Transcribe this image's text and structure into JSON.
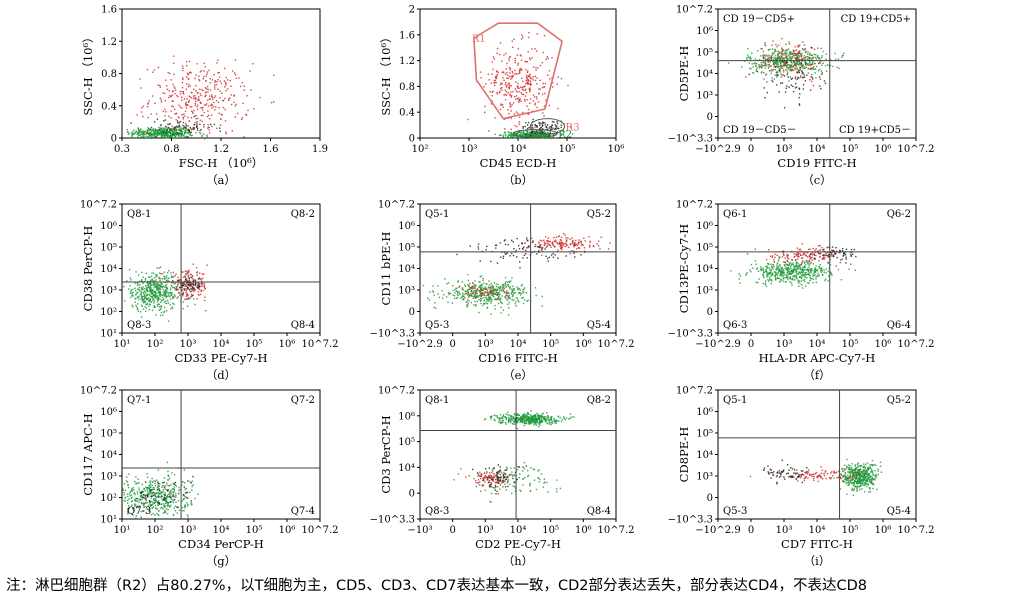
{
  "figure": {
    "note": "注：淋巴细胞群（R2）占80.27%，以T细胞为主，CD5、CD3、CD7表达基本一致，CD2部分表达丢失，部分表达CD4，不表达CD8"
  },
  "colors": {
    "red": "#d42a2a",
    "green": "#1f9a3a",
    "black": "#222222",
    "gate": "#e0706a",
    "axis": "#000000",
    "gridline": "#444444"
  },
  "chart_data": [
    {
      "type": "scatter",
      "panel": "（a）",
      "xlabel": "FSC-H （10⁶）",
      "ylabel": "SSC-H （10⁶）",
      "xscale": "linear",
      "yscale": "linear",
      "xlim": [
        0.3,
        1.9
      ],
      "ylim": [
        0,
        1.8
      ],
      "x_ticks": [
        "0.3",
        "0.8",
        "1.2",
        "1.6",
        "1.9"
      ],
      "y_ticks": [
        "0",
        "0.4",
        "0.8",
        "1.2",
        "1.6"
      ],
      "quadrants": [],
      "populations": [
        {
          "color": "green",
          "cx": 0.62,
          "cy": 0.08,
          "sx": 0.13,
          "sy": 0.04,
          "n": 420
        },
        {
          "color": "red",
          "cx": 0.92,
          "cy": 0.55,
          "sx": 0.2,
          "sy": 0.25,
          "n": 360
        },
        {
          "color": "black",
          "cx": 0.75,
          "cy": 0.15,
          "sx": 0.15,
          "sy": 0.07,
          "n": 70
        }
      ]
    },
    {
      "type": "scatter",
      "panel": "（b）",
      "xlabel": "CD45 ECD-H",
      "ylabel": "SSC-H （10⁶）",
      "xscale": "log",
      "yscale": "linear",
      "xlim": [
        2,
        6
      ],
      "ylim": [
        0,
        2
      ],
      "x_ticks": [
        "10²",
        "10³",
        "10⁴",
        "10⁵",
        "10⁶"
      ],
      "y_ticks": [
        "0",
        "0.4",
        "0.8",
        "1.2",
        "1.6",
        "2"
      ],
      "quadrants": [],
      "gates": [
        {
          "label": "R1",
          "type": "polygon",
          "points": [
            [
              3.1,
              1.55
            ],
            [
              3.6,
              1.78
            ],
            [
              4.4,
              1.78
            ],
            [
              4.9,
              1.5
            ],
            [
              4.55,
              0.45
            ],
            [
              3.7,
              0.3
            ],
            [
              3.15,
              0.9
            ]
          ]
        },
        {
          "label": "R3",
          "type": "ellipse",
          "cx": 4.6,
          "cy": 0.18,
          "rx": 0.35,
          "ry": 0.12
        },
        {
          "label": "R2",
          "type": "ellipse",
          "cx": 4.35,
          "cy": 0.07,
          "rx": 0.45,
          "ry": 0.06
        }
      ],
      "populations": [
        {
          "color": "green",
          "cx": 4.3,
          "cy": 0.06,
          "sx": 0.25,
          "sy": 0.03,
          "n": 420
        },
        {
          "color": "red",
          "cx": 4.0,
          "cy": 0.85,
          "sx": 0.35,
          "sy": 0.3,
          "n": 320
        },
        {
          "color": "black",
          "cx": 4.5,
          "cy": 0.18,
          "sx": 0.22,
          "sy": 0.05,
          "n": 90
        }
      ]
    },
    {
      "type": "scatter",
      "panel": "（c）",
      "xlabel": "CD19 FITC-H",
      "ylabel": "CD5PE-H",
      "xscale": "biexp",
      "yscale": "biexp",
      "xlim": [
        -2.9,
        7.2
      ],
      "ylim": [
        -3.3,
        7.2
      ],
      "x_ticks": [
        "−10^2.9",
        "0",
        "10³",
        "10⁴",
        "10⁵",
        "10⁶",
        "10^7.2"
      ],
      "y_ticks": [
        "−10^3.3",
        "0",
        "10³",
        "10⁴",
        "10⁵",
        "10⁶",
        "10^7.2"
      ],
      "quadrants": [
        {
          "pos": "top-left",
          "label": "CD 19－CD5+"
        },
        {
          "pos": "top-right",
          "label": "CD 19+CD5+"
        },
        {
          "pos": "bottom-left",
          "label": "CD 19－CD5－"
        },
        {
          "pos": "bottom-right",
          "label": "CD 19+CD5－"
        }
      ],
      "populations": [
        {
          "color": "green",
          "cx": 0.6,
          "cy": 3.0,
          "sx": 1.0,
          "sy": 0.55,
          "n": 450
        },
        {
          "color": "red",
          "cx": 0.9,
          "cy": 3.1,
          "sx": 0.9,
          "sy": 0.8,
          "n": 160
        },
        {
          "color": "black",
          "cx": 0.9,
          "cy": 1.5,
          "sx": 0.7,
          "sy": 0.9,
          "n": 70
        }
      ]
    },
    {
      "type": "scatter",
      "panel": "（d）",
      "xlabel": "CD33 PE-Cy7-H",
      "ylabel": "CD38 PerCP-H",
      "xscale": "log",
      "yscale": "log",
      "xlim": [
        1,
        7.2
      ],
      "ylim": [
        1,
        7.2
      ],
      "x_ticks": [
        "10¹",
        "10²",
        "10³",
        "10⁴",
        "10⁵",
        "10⁶",
        "10^7.2"
      ],
      "y_ticks": [
        "10¹",
        "10²",
        "10³",
        "10⁴",
        "10⁵",
        "10⁶",
        "10^7.2"
      ],
      "quadrants": [
        {
          "pos": "top-left",
          "label": "Q8-1"
        },
        {
          "pos": "top-right",
          "label": "Q8-2"
        },
        {
          "pos": "bottom-left",
          "label": "Q8-3"
        },
        {
          "pos": "bottom-right",
          "label": "Q8-4"
        }
      ],
      "populations": [
        {
          "color": "green",
          "cx": 2.0,
          "cy": 3.0,
          "sx": 0.5,
          "sy": 0.45,
          "n": 480
        },
        {
          "color": "red",
          "cx": 3.1,
          "cy": 3.3,
          "sx": 0.3,
          "sy": 0.35,
          "n": 150
        },
        {
          "color": "black",
          "cx": 3.1,
          "cy": 3.35,
          "sx": 0.2,
          "sy": 0.2,
          "n": 60
        }
      ]
    },
    {
      "type": "scatter",
      "panel": "（e）",
      "xlabel": "CD16 FITC-H",
      "ylabel": "CD11 bPE-H",
      "xscale": "biexp",
      "yscale": "biexp",
      "xlim": [
        -2.9,
        7.2
      ],
      "ylim": [
        -3.3,
        7.2
      ],
      "x_ticks": [
        "−10^2.9",
        "0",
        "10³",
        "10⁴",
        "10⁵",
        "10⁶",
        "10^7.2"
      ],
      "y_ticks": [
        "−10^3.3",
        "0",
        "10³",
        "10⁴",
        "10⁵",
        "10⁶",
        "10^7.2"
      ],
      "quadrants": [
        {
          "pos": "top-left",
          "label": "Q5-1"
        },
        {
          "pos": "top-right",
          "label": "Q5-2"
        },
        {
          "pos": "bottom-left",
          "label": "Q5-3"
        },
        {
          "pos": "bottom-right",
          "label": "Q5-4"
        }
      ],
      "populations": [
        {
          "color": "green",
          "cx": 0.5,
          "cy": 0.0,
          "sx": 1.1,
          "sy": 0.5,
          "n": 420
        },
        {
          "color": "red",
          "cx": 4.5,
          "cy": 4.0,
          "sx": 0.9,
          "sy": 0.35,
          "n": 150
        },
        {
          "color": "red",
          "cx": 0.4,
          "cy": 0.1,
          "sx": 0.6,
          "sy": 0.35,
          "n": 70
        },
        {
          "color": "black",
          "cx": 2.5,
          "cy": 3.4,
          "sx": 1.4,
          "sy": 0.5,
          "n": 90
        }
      ]
    },
    {
      "type": "scatter",
      "panel": "（f）",
      "xlabel": "HLA-DR APC-Cy7-H",
      "ylabel": "CD13PE-Cy7-H",
      "xscale": "biexp",
      "yscale": "biexp",
      "xlim": [
        -2.9,
        7.2
      ],
      "ylim": [
        -3.3,
        7.2
      ],
      "x_ticks": [
        "−10^2.9",
        "0",
        "10³",
        "10⁴",
        "10⁵",
        "10⁶",
        "10^7.2"
      ],
      "y_ticks": [
        "−10^3.3",
        "0",
        "10³",
        "10⁴",
        "10⁵",
        "10⁶",
        "10^7.2"
      ],
      "quadrants": [
        {
          "pos": "top-left",
          "label": "Q6-1"
        },
        {
          "pos": "top-right",
          "label": "Q6-2"
        },
        {
          "pos": "bottom-left",
          "label": "Q6-3"
        },
        {
          "pos": "bottom-right",
          "label": "Q6-4"
        }
      ],
      "populations": [
        {
          "color": "green",
          "cx": 0.8,
          "cy": 1.7,
          "sx": 1.0,
          "sy": 0.45,
          "n": 450
        },
        {
          "color": "red",
          "cx": 1.5,
          "cy": 3.1,
          "sx": 1.0,
          "sy": 0.3,
          "n": 130
        },
        {
          "color": "black",
          "cx": 3.2,
          "cy": 3.3,
          "sx": 0.6,
          "sy": 0.3,
          "n": 60
        }
      ]
    },
    {
      "type": "scatter",
      "panel": "（g）",
      "xlabel": "CD34 PerCP-H",
      "ylabel": "CD117 APC-H",
      "xscale": "log",
      "yscale": "log",
      "xlim": [
        1,
        7.2
      ],
      "ylim": [
        1,
        7.2
      ],
      "x_ticks": [
        "10¹",
        "10²",
        "10³",
        "10⁴",
        "10⁵",
        "10⁶",
        "10^7.2"
      ],
      "y_ticks": [
        "10¹",
        "10²",
        "10³",
        "10⁴",
        "10⁵",
        "10⁶",
        "10^7.2"
      ],
      "quadrants": [
        {
          "pos": "top-left",
          "label": "Q7-1"
        },
        {
          "pos": "top-right",
          "label": "Q7-2"
        },
        {
          "pos": "bottom-left",
          "label": "Q7-3"
        },
        {
          "pos": "bottom-right",
          "label": "Q7-4"
        }
      ],
      "populations": [
        {
          "color": "green",
          "cx": 2.0,
          "cy": 2.1,
          "sx": 0.55,
          "sy": 0.5,
          "n": 420
        },
        {
          "color": "black",
          "cx": 2.2,
          "cy": 2.2,
          "sx": 0.5,
          "sy": 0.4,
          "n": 80
        }
      ]
    },
    {
      "type": "scatter",
      "panel": "（h）",
      "xlabel": "CD2 PE-Cy7-H",
      "ylabel": "CD3 PerCP-H",
      "xscale": "biexp",
      "yscale": "biexp",
      "xlim": [
        -3,
        7.2
      ],
      "ylim": [
        -3.3,
        7.2
      ],
      "x_ticks": [
        "−10³",
        "0",
        "10³",
        "10⁴",
        "10⁵",
        "10⁶",
        "10^7.2"
      ],
      "y_ticks": [
        "−10^3.3",
        "0",
        "10⁴",
        "10⁵",
        "10⁶",
        "10^7.2"
      ],
      "quadrants": [
        {
          "pos": "top-left",
          "label": "Q8-1"
        },
        {
          "pos": "top-right",
          "label": "Q8-2"
        },
        {
          "pos": "bottom-left",
          "label": "Q8-3"
        },
        {
          "pos": "bottom-right",
          "label": "Q8-4"
        }
      ],
      "populations": [
        {
          "color": "green",
          "cx": 2.6,
          "cy": 4.9,
          "sx": 0.8,
          "sy": 0.22,
          "n": 420
        },
        {
          "color": "green",
          "cx": 1.5,
          "cy": 0.0,
          "sx": 1.2,
          "sy": 0.6,
          "n": 120
        },
        {
          "color": "red",
          "cx": 0.6,
          "cy": 0.0,
          "sx": 0.45,
          "sy": 0.35,
          "n": 90
        },
        {
          "color": "black",
          "cx": 1.2,
          "cy": 0.2,
          "sx": 0.6,
          "sy": 0.5,
          "n": 60
        }
      ]
    },
    {
      "type": "scatter",
      "panel": "（i）",
      "xlabel": "CD7 FITC-H",
      "ylabel": "CD8PE-H",
      "xscale": "biexp",
      "yscale": "biexp",
      "xlim": [
        -2.9,
        7.2
      ],
      "ylim": [
        -3.3,
        7.2
      ],
      "x_ticks": [
        "−10^2.9",
        "0",
        "10³",
        "10⁴",
        "10⁵",
        "10⁶",
        "10^7.2"
      ],
      "y_ticks": [
        "−10^3.3",
        "0",
        "10³",
        "10⁴",
        "10⁵",
        "10⁶",
        "10^7.2"
      ],
      "quadrants": [
        {
          "pos": "top-left",
          "label": "Q5-1"
        },
        {
          "pos": "top-right",
          "label": "Q5-2"
        },
        {
          "pos": "bottom-left",
          "label": "Q5-3"
        },
        {
          "pos": "bottom-right",
          "label": "Q5-4"
        }
      ],
      "populations": [
        {
          "color": "green",
          "cx": 4.3,
          "cy": 0.2,
          "sx": 0.45,
          "sy": 0.55,
          "n": 420
        },
        {
          "color": "red",
          "cx": 2.3,
          "cy": 0.3,
          "sx": 1.2,
          "sy": 0.25,
          "n": 100
        },
        {
          "color": "black",
          "cx": 0.6,
          "cy": 0.4,
          "sx": 0.6,
          "sy": 0.3,
          "n": 60
        }
      ]
    }
  ]
}
